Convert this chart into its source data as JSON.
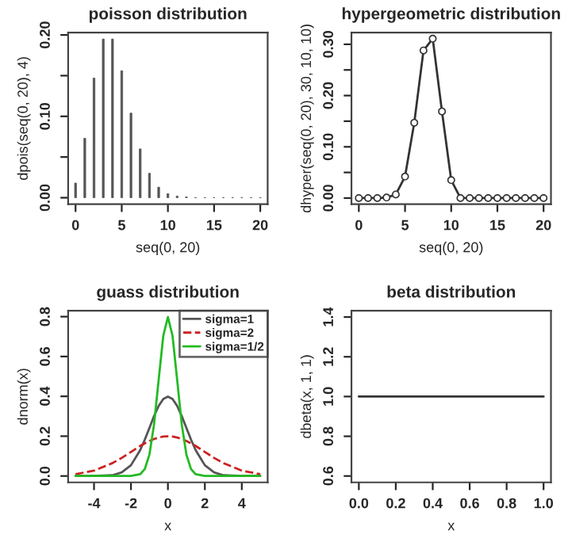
{
  "chart_data": [
    {
      "type": "bar",
      "title": "poisson distribution",
      "xlabel": "seq(0, 20)",
      "ylabel": "dpois(seq(0, 20), 4)",
      "color": "#555555",
      "x": [
        0,
        1,
        2,
        3,
        4,
        5,
        6,
        7,
        8,
        9,
        10,
        11,
        12,
        13,
        14,
        15,
        16,
        17,
        18,
        19,
        20
      ],
      "values": [
        0.018,
        0.073,
        0.147,
        0.195,
        0.195,
        0.156,
        0.104,
        0.06,
        0.03,
        0.013,
        0.005,
        0.002,
        0.001,
        0,
        0,
        0,
        0,
        0,
        0,
        0,
        0
      ],
      "xlim": [
        -0.8,
        20.8
      ],
      "ylim": [
        -0.008,
        0.203
      ],
      "xticks": [
        0,
        5,
        10,
        15,
        20
      ],
      "yticks": [
        {
          "value": 0,
          "label": "0.00"
        },
        {
          "value": 0.05,
          "label": null
        },
        {
          "value": 0.1,
          "label": "0.10"
        },
        {
          "value": 0.15,
          "label": null
        },
        {
          "value": 0.2,
          "label": "0.20"
        }
      ]
    },
    {
      "type": "line",
      "title": "hypergeometric distribution",
      "xlabel": "seq(0, 20)",
      "ylabel": "dhyper(seq(0, 20), 30, 10, 10)",
      "marker": "circle",
      "color": "#333333",
      "x": [
        0,
        1,
        2,
        3,
        4,
        5,
        6,
        7,
        8,
        9,
        10,
        11,
        12,
        13,
        14,
        15,
        16,
        17,
        18,
        19,
        20
      ],
      "values": [
        0,
        0,
        0,
        0.001,
        0.007,
        0.042,
        0.147,
        0.288,
        0.311,
        0.169,
        0.035,
        0,
        0,
        0,
        0,
        0,
        0,
        0,
        0,
        0,
        0
      ],
      "xlim": [
        -0.8,
        20.8
      ],
      "ylim": [
        -0.012,
        0.323
      ],
      "xticks": [
        0,
        5,
        10,
        15,
        20
      ],
      "yticks": [
        {
          "value": 0,
          "label": "0.00"
        },
        {
          "value": 0.05,
          "label": null
        },
        {
          "value": 0.1,
          "label": "0.10"
        },
        {
          "value": 0.15,
          "label": null
        },
        {
          "value": 0.2,
          "label": "0.20"
        },
        {
          "value": 0.25,
          "label": null
        },
        {
          "value": 0.3,
          "label": "0.30"
        }
      ]
    },
    {
      "type": "line",
      "title": "guass distribution",
      "xlabel": "x",
      "ylabel": "dnorm(x)",
      "legend": "top right",
      "x": [
        -5,
        -4,
        -3,
        -2.5,
        -2,
        -1.5,
        -1.25,
        -1,
        -0.75,
        -0.5,
        -0.25,
        0,
        0.25,
        0.5,
        0.75,
        1,
        1.25,
        1.5,
        2,
        2.5,
        3,
        4,
        5
      ],
      "series": [
        {
          "name": "sigma=1",
          "color": "#555555",
          "line_style": "solid",
          "values": [
            0,
            0,
            0.004,
            0.018,
            0.054,
            0.13,
            0.183,
            0.242,
            0.301,
            0.352,
            0.387,
            0.399,
            0.387,
            0.352,
            0.301,
            0.242,
            0.183,
            0.13,
            0.054,
            0.018,
            0.004,
            0,
            0
          ]
        },
        {
          "name": "sigma=2",
          "color": "#cc2222",
          "line_style": "dashed",
          "values": [
            0.009,
            0.027,
            0.065,
            0.091,
            0.121,
            0.151,
            0.164,
            0.176,
            0.186,
            0.193,
            0.198,
            0.199,
            0.198,
            0.193,
            0.186,
            0.176,
            0.164,
            0.151,
            0.121,
            0.091,
            0.065,
            0.027,
            0.009
          ]
        },
        {
          "name": "sigma=1/2",
          "color": "#22bb22",
          "line_style": "solid",
          "values": [
            0,
            0,
            0,
            0,
            0,
            0.009,
            0.035,
            0.108,
            0.259,
            0.484,
            0.704,
            0.798,
            0.704,
            0.484,
            0.259,
            0.108,
            0.035,
            0.009,
            0,
            0,
            0,
            0,
            0
          ]
        }
      ],
      "xlim": [
        -5.4,
        5.4
      ],
      "ylim": [
        -0.032,
        0.83
      ],
      "xticks": [
        -4,
        -2,
        0,
        2,
        4
      ],
      "yticks": [
        {
          "value": 0,
          "label": "0.0"
        },
        {
          "value": 0.2,
          "label": "0.2"
        },
        {
          "value": 0.4,
          "label": "0.4"
        },
        {
          "value": 0.6,
          "label": "0.6"
        },
        {
          "value": 0.8,
          "label": "0.8"
        }
      ]
    },
    {
      "type": "line",
      "title": "beta distribution",
      "xlabel": "x",
      "ylabel": "dbeta(x, 1, 1)",
      "color": "#333333",
      "x": [
        0,
        1
      ],
      "values": [
        1,
        1
      ],
      "xlim": [
        -0.04,
        1.04
      ],
      "ylim": [
        0.568,
        1.432
      ],
      "xticks": [
        {
          "value": 0,
          "label": "0.0"
        },
        {
          "value": 0.2,
          "label": "0.2"
        },
        {
          "value": 0.4,
          "label": "0.4"
        },
        {
          "value": 0.6,
          "label": "0.6"
        },
        {
          "value": 0.8,
          "label": "0.8"
        },
        {
          "value": 1,
          "label": "1.0"
        }
      ],
      "yticks": [
        {
          "value": 0.6,
          "label": "0.6"
        },
        {
          "value": 0.8,
          "label": "0.8"
        },
        {
          "value": 1,
          "label": "1.0"
        },
        {
          "value": 1.2,
          "label": "1.2"
        },
        {
          "value": 1.4,
          "label": "1.4"
        }
      ]
    }
  ]
}
